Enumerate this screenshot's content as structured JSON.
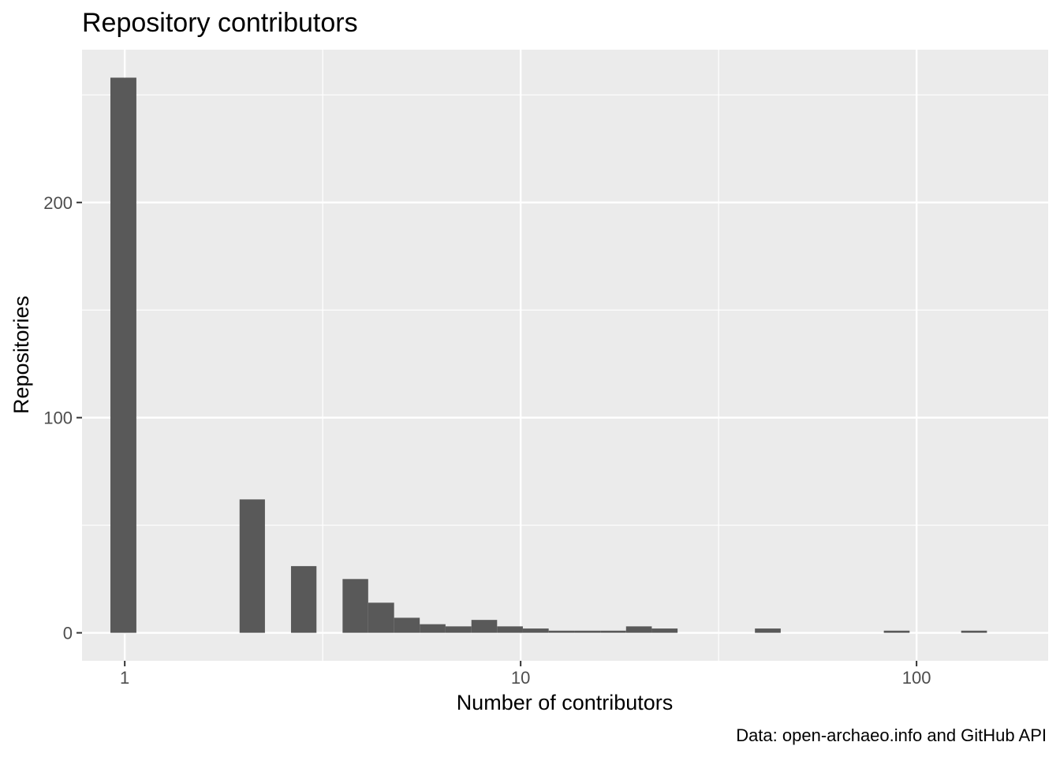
{
  "chart_data": {
    "type": "bar",
    "title": "Repository contributors",
    "xlabel": "Number of contributors",
    "ylabel": "Repositories",
    "caption": "Data: open-archaeo.info and GitHub API",
    "x_scale": "log10",
    "x_ticks": [
      {
        "value": 1,
        "label": "1"
      },
      {
        "value": 10,
        "label": "10"
      },
      {
        "value": 100,
        "label": "100"
      }
    ],
    "y_ticks": [
      {
        "value": 0,
        "label": "0"
      },
      {
        "value": 100,
        "label": "100"
      },
      {
        "value": 200,
        "label": "200"
      }
    ],
    "xlim": [
      0.78,
      215
    ],
    "ylim": [
      -13,
      271
    ],
    "grid": true,
    "bar_color": "#595959",
    "panel_color": "#ebebeb",
    "grid_color": "#ffffff",
    "bins": [
      {
        "x0": 0.92,
        "x1": 1.07,
        "count": 258
      },
      {
        "x0": 1.07,
        "x1": 1.24,
        "count": 0
      },
      {
        "x0": 1.24,
        "x1": 1.44,
        "count": 0
      },
      {
        "x0": 1.44,
        "x1": 1.68,
        "count": 0
      },
      {
        "x0": 1.68,
        "x1": 1.95,
        "count": 0
      },
      {
        "x0": 1.95,
        "x1": 2.26,
        "count": 62
      },
      {
        "x0": 2.26,
        "x1": 2.63,
        "count": 0
      },
      {
        "x0": 2.63,
        "x1": 3.05,
        "count": 31
      },
      {
        "x0": 3.05,
        "x1": 3.55,
        "count": 0
      },
      {
        "x0": 3.55,
        "x1": 4.12,
        "count": 25
      },
      {
        "x0": 4.12,
        "x1": 4.79,
        "count": 14
      },
      {
        "x0": 4.79,
        "x1": 5.56,
        "count": 7
      },
      {
        "x0": 5.56,
        "x1": 6.46,
        "count": 4
      },
      {
        "x0": 6.46,
        "x1": 7.51,
        "count": 3
      },
      {
        "x0": 7.51,
        "x1": 8.72,
        "count": 6
      },
      {
        "x0": 8.72,
        "x1": 10.13,
        "count": 3
      },
      {
        "x0": 10.13,
        "x1": 11.77,
        "count": 2
      },
      {
        "x0": 11.77,
        "x1": 13.68,
        "count": 1
      },
      {
        "x0": 13.68,
        "x1": 15.89,
        "count": 1
      },
      {
        "x0": 15.89,
        "x1": 18.46,
        "count": 1
      },
      {
        "x0": 18.46,
        "x1": 21.44,
        "count": 3
      },
      {
        "x0": 21.44,
        "x1": 24.91,
        "count": 2
      },
      {
        "x0": 24.91,
        "x1": 28.94,
        "count": 0
      },
      {
        "x0": 28.94,
        "x1": 33.62,
        "count": 0
      },
      {
        "x0": 33.62,
        "x1": 39.06,
        "count": 0
      },
      {
        "x0": 39.06,
        "x1": 45.38,
        "count": 2
      },
      {
        "x0": 45.38,
        "x1": 52.72,
        "count": 0
      },
      {
        "x0": 52.72,
        "x1": 61.25,
        "count": 0
      },
      {
        "x0": 61.25,
        "x1": 71.16,
        "count": 0
      },
      {
        "x0": 71.16,
        "x1": 82.67,
        "count": 0
      },
      {
        "x0": 82.67,
        "x1": 96.04,
        "count": 1
      },
      {
        "x0": 96.04,
        "x1": 111.58,
        "count": 0
      },
      {
        "x0": 111.58,
        "x1": 129.62,
        "count": 0
      },
      {
        "x0": 129.62,
        "x1": 150.59,
        "count": 1
      }
    ]
  }
}
